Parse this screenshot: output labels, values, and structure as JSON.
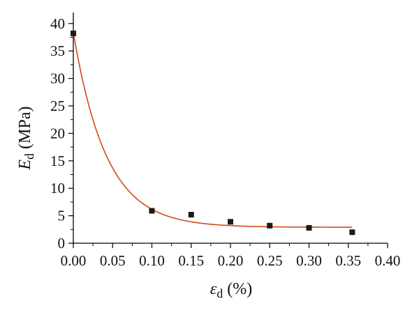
{
  "chart_data": {
    "type": "scatter",
    "title": "",
    "xlabel": {
      "symbol": "ε",
      "subscript": "d",
      "unit": "(%)"
    },
    "ylabel": {
      "symbol": "E",
      "subscript": "d",
      "unit": "(MPa)"
    },
    "xlim": [
      0.0,
      0.4
    ],
    "ylim": [
      0,
      42
    ],
    "xticks": [
      0.0,
      0.05,
      0.1,
      0.15,
      0.2,
      0.25,
      0.3,
      0.35,
      0.4
    ],
    "xtick_labels": [
      "0.00",
      "0.05",
      "0.10",
      "0.15",
      "0.20",
      "0.25",
      "0.30",
      "0.35",
      "0.40"
    ],
    "yticks": [
      0,
      5,
      10,
      15,
      20,
      25,
      30,
      35,
      40
    ],
    "ytick_labels": [
      "0",
      "5",
      "10",
      "15",
      "20",
      "25",
      "30",
      "35",
      "40"
    ],
    "grid": false,
    "legend": "none",
    "series": [
      {
        "kind": "scatter",
        "marker": "square",
        "color": "#1a1a1a",
        "x": [
          0.0,
          0.1,
          0.15,
          0.2,
          0.25,
          0.3,
          0.355
        ],
        "y": [
          38.2,
          5.9,
          5.2,
          3.9,
          3.2,
          2.8,
          2.0
        ]
      },
      {
        "kind": "fit-line",
        "color": "#d04a1c",
        "x_range": [
          0.0,
          0.355
        ],
        "fit": {
          "model": "exponential decay",
          "y0": 2.9,
          "A": 35.5,
          "t": 0.042
        }
      }
    ]
  }
}
